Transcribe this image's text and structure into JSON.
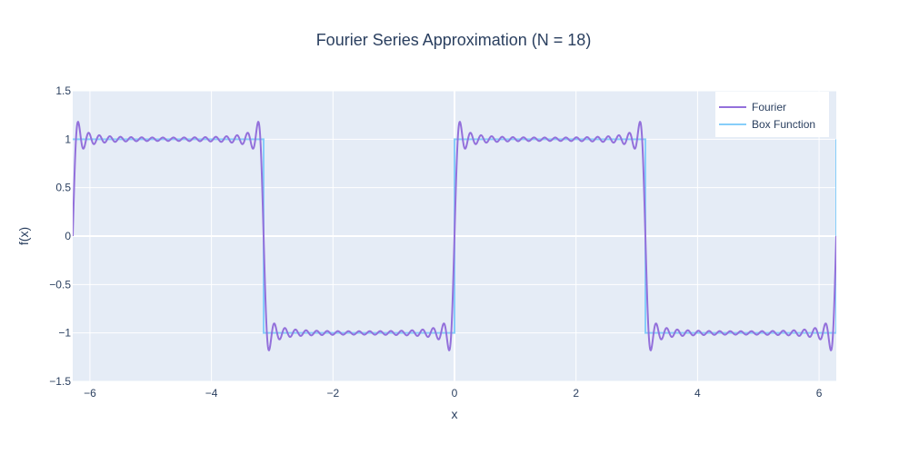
{
  "chart_data": {
    "type": "line",
    "title": "Fourier Series Approximation (N = 18)",
    "xlabel": "x",
    "ylabel": "f(x)",
    "xlim": [
      -6.2832,
      6.2832
    ],
    "ylim": [
      -1.5,
      1.5
    ],
    "x_ticks": [
      -6,
      -4,
      -2,
      0,
      2,
      4,
      6
    ],
    "x_tick_labels": [
      "−6",
      "−4",
      "−2",
      "0",
      "2",
      "4",
      "6"
    ],
    "y_ticks": [
      -1.5,
      -1,
      -0.5,
      0,
      0.5,
      1,
      1.5
    ],
    "y_tick_labels": [
      "−1.5",
      "−1",
      "−0.5",
      "0",
      "0.5",
      "1",
      "1.5"
    ],
    "grid": true,
    "legend_position": "top-right",
    "series": [
      {
        "name": "Fourier",
        "color": "#9370DB",
        "function": "(4/pi) * sum_{k=1..18} sin((2k-1)x)/(2k-1)",
        "harmonics": 18,
        "x_range": [
          -6.2832,
          6.2832
        ]
      },
      {
        "name": "Box Function",
        "color": "#87CEFA",
        "x": [
          -6.2832,
          -3.1416,
          -3.1416,
          0,
          0,
          3.1416,
          3.1416,
          6.2832,
          6.2832
        ],
        "y": [
          1,
          1,
          -1,
          -1,
          1,
          1,
          -1,
          -1,
          1
        ]
      }
    ],
    "colors": {
      "plot_background": "#E5ECF6",
      "grid": "#ffffff",
      "text": "#2a3f5f"
    }
  }
}
